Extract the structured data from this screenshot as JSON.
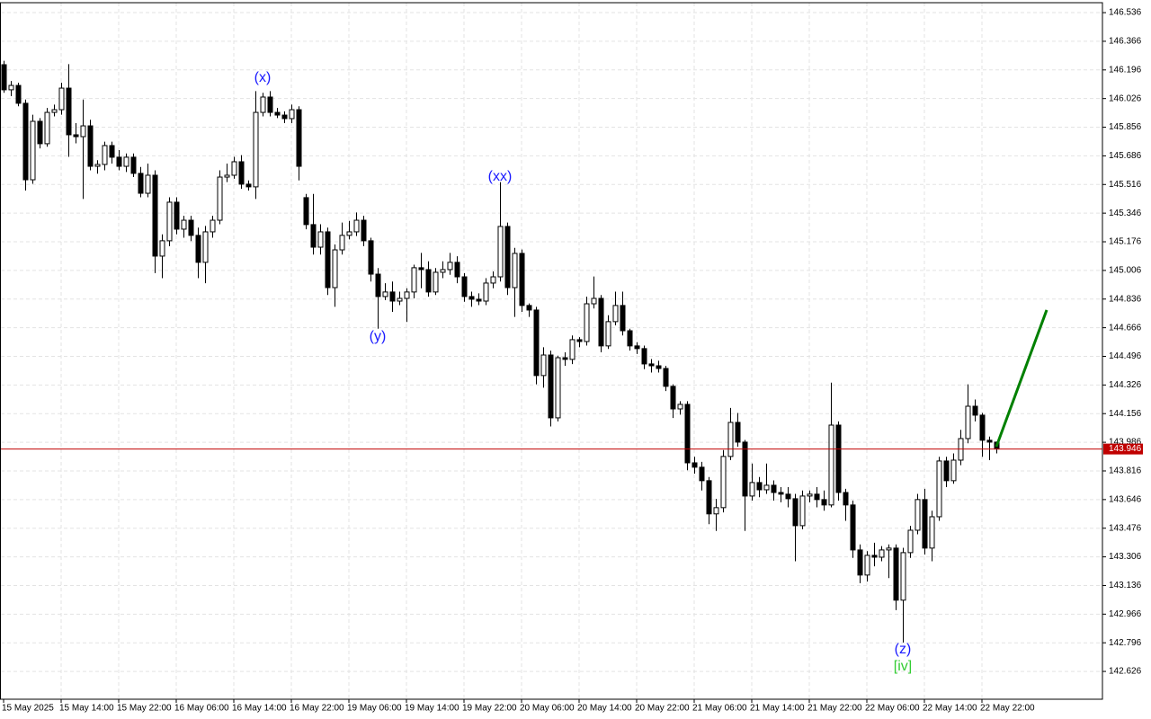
{
  "chart_data": {
    "type": "candlestick",
    "categories": [
      "15 May 2025",
      null,
      null,
      null,
      null,
      null,
      null,
      null,
      "15 May 14:00",
      null,
      null,
      null,
      null,
      null,
      null,
      null,
      "15 May 22:00",
      null,
      null,
      null,
      null,
      null,
      null,
      null,
      "16 May 06:00",
      null,
      null,
      null,
      null,
      null,
      null,
      null,
      "16 May 14:00",
      null,
      null,
      null,
      null,
      null,
      null,
      null,
      "16 May 22:00",
      null,
      null,
      null,
      null,
      null,
      null,
      null,
      "19 May 06:00",
      null,
      null,
      null,
      null,
      null,
      null,
      null,
      "19 May 14:00",
      null,
      null,
      null,
      null,
      null,
      null,
      null,
      "19 May 22:00",
      null,
      null,
      null,
      null,
      null,
      null,
      null,
      "20 May 06:00",
      null,
      null,
      null,
      null,
      null,
      null,
      null,
      "20 May 14:00",
      null,
      null,
      null,
      null,
      null,
      null,
      null,
      "20 May 22:00",
      null,
      null,
      null,
      null,
      null,
      null,
      null,
      "21 May 06:00",
      null,
      null,
      null,
      null,
      null,
      null,
      null,
      "21 May 14:00",
      null,
      null,
      null,
      null,
      null,
      null,
      null,
      "21 May 22:00",
      null,
      null,
      null,
      null,
      null,
      null,
      null,
      "22 May 06:00",
      null,
      null,
      null,
      null,
      null,
      null,
      null,
      "22 May 14:00",
      null,
      null,
      null,
      null,
      null,
      null,
      null,
      "22 May 22:00",
      null,
      null
    ],
    "open": [
      146.227,
      146.078,
      146.104,
      145.998,
      145.544,
      145.891,
      145.758,
      145.944,
      145.96,
      146.088,
      145.811,
      145.8,
      145.864,
      145.624,
      145.635,
      145.747,
      145.678,
      145.624,
      145.678,
      145.582,
      145.464,
      145.571,
      145.091,
      145.182,
      145.411,
      145.251,
      145.304,
      145.214,
      145.054,
      145.235,
      145.304,
      145.56,
      145.571,
      145.651,
      145.518,
      145.502,
      145.944,
      146.035,
      145.944,
      145.928,
      145.907,
      145.96,
      145.438,
      145.278,
      145.144,
      145.235,
      144.904,
      145.128,
      145.214,
      145.235,
      145.304,
      145.182,
      144.984,
      144.851,
      144.878,
      144.824,
      144.84,
      144.878,
      145.022,
      145.011,
      144.878,
      144.995,
      145.011,
      145.054,
      144.968,
      144.851,
      144.835,
      144.824,
      144.931,
      144.968,
      145.267,
      144.904,
      145.107,
      144.798,
      144.771,
      144.382,
      144.504,
      144.131,
      144.488,
      144.478,
      144.595,
      144.584,
      144.808,
      144.84,
      144.558,
      144.702,
      144.798,
      144.648,
      144.558,
      144.542,
      144.451,
      144.44,
      144.424,
      144.318,
      144.184,
      144.211,
      143.864,
      143.838,
      143.758,
      143.561,
      143.598,
      143.902,
      144.104,
      143.987,
      143.667,
      143.747,
      143.704,
      143.731,
      143.688,
      143.678,
      143.651,
      143.491,
      143.667,
      143.678,
      143.646,
      143.614,
      144.088,
      143.688,
      143.614,
      143.347,
      143.198,
      143.315,
      143.304,
      143.347,
      143.358,
      143.049,
      143.331,
      143.464,
      143.646,
      143.358,
      143.544,
      143.875,
      143.758,
      143.88,
      144.008,
      144.2,
      144.147,
      143.998,
      143.987
    ],
    "high": [
      146.25,
      146.13,
      146.12,
      146.02,
      145.93,
      145.91,
      145.97,
      145.99,
      146.12,
      146.23,
      145.88,
      146.02,
      145.9,
      145.66,
      145.77,
      145.77,
      145.72,
      145.7,
      145.7,
      145.62,
      145.64,
      145.6,
      145.22,
      145.44,
      145.44,
      145.33,
      145.33,
      145.26,
      145.27,
      145.33,
      145.6,
      145.64,
      145.68,
      145.69,
      145.54,
      146.07,
      146.06,
      146.07,
      145.97,
      145.95,
      145.99,
      145.98,
      145.46,
      145.46,
      145.28,
      145.26,
      145.16,
      145.29,
      145.3,
      145.35,
      145.33,
      145.2,
      145.02,
      144.93,
      144.94,
      144.88,
      144.9,
      145.04,
      145.11,
      145.06,
      145.02,
      145.06,
      145.11,
      145.09,
      144.99,
      144.88,
      144.87,
      144.96,
      145.0,
      145.53,
      145.29,
      145.14,
      145.13,
      144.81,
      144.79,
      144.55,
      144.53,
      144.5,
      144.52,
      144.62,
      144.61,
      144.85,
      144.97,
      144.86,
      144.74,
      144.88,
      144.88,
      144.66,
      144.58,
      144.56,
      144.48,
      144.47,
      144.44,
      144.33,
      144.23,
      144.23,
      143.9,
      143.87,
      143.78,
      143.65,
      143.94,
      144.19,
      144.16,
      144.0,
      143.86,
      143.78,
      143.86,
      143.76,
      143.72,
      143.72,
      143.68,
      143.7,
      143.7,
      143.72,
      143.7,
      144.34,
      144.11,
      143.71,
      143.64,
      143.38,
      143.34,
      143.39,
      143.37,
      143.38,
      143.38,
      143.36,
      143.49,
      143.68,
      143.71,
      143.58,
      143.9,
      143.9,
      143.92,
      144.06,
      144.33,
      144.24,
      144.16,
      144.02,
      143.99
    ],
    "low": [
      146.06,
      146.04,
      145.98,
      145.48,
      145.52,
      145.73,
      145.74,
      145.92,
      145.93,
      145.68,
      145.76,
      145.43,
      145.6,
      145.58,
      145.6,
      145.64,
      145.6,
      145.59,
      145.56,
      145.44,
      145.44,
      144.99,
      144.96,
      145.15,
      145.22,
      145.2,
      145.18,
      144.96,
      144.93,
      145.2,
      145.28,
      145.53,
      145.55,
      145.49,
      145.48,
      145.43,
      145.92,
      145.92,
      145.91,
      145.88,
      145.88,
      145.54,
      145.25,
      145.1,
      145.1,
      144.86,
      144.79,
      145.1,
      145.19,
      145.21,
      145.15,
      144.94,
      144.66,
      144.83,
      144.76,
      144.8,
      144.7,
      144.84,
      144.9,
      144.85,
      144.86,
      144.96,
      144.98,
      144.93,
      144.82,
      144.79,
      144.8,
      144.8,
      144.9,
      144.94,
      144.86,
      144.73,
      144.76,
      144.73,
      144.33,
      144.31,
      144.08,
      144.11,
      144.44,
      144.45,
      144.55,
      144.56,
      144.78,
      144.52,
      144.54,
      144.68,
      144.62,
      144.53,
      144.51,
      144.42,
      144.4,
      144.4,
      144.29,
      144.13,
      144.15,
      143.82,
      143.8,
      143.7,
      143.5,
      143.46,
      143.57,
      143.88,
      143.96,
      143.46,
      143.64,
      143.66,
      143.68,
      143.64,
      143.63,
      143.6,
      143.28,
      143.47,
      143.63,
      143.6,
      143.58,
      143.6,
      143.64,
      143.52,
      143.3,
      143.15,
      143.16,
      143.25,
      143.28,
      143.18,
      142.99,
      142.798,
      143.3,
      143.44,
      143.32,
      143.28,
      143.52,
      143.72,
      143.74,
      143.85,
      143.98,
      144.11,
      143.9,
      143.88,
      143.92
    ],
    "close": [
      146.078,
      146.104,
      145.998,
      145.544,
      145.891,
      145.758,
      145.944,
      145.96,
      146.088,
      145.811,
      145.8,
      145.864,
      145.624,
      145.635,
      145.747,
      145.678,
      145.624,
      145.678,
      145.582,
      145.464,
      145.571,
      145.091,
      145.182,
      145.411,
      145.251,
      145.304,
      145.214,
      145.054,
      145.235,
      145.304,
      145.56,
      145.571,
      145.651,
      145.518,
      145.502,
      145.944,
      146.035,
      145.944,
      145.928,
      145.907,
      145.96,
      145.624,
      145.278,
      145.144,
      145.235,
      144.904,
      145.128,
      145.214,
      145.235,
      145.304,
      145.182,
      144.984,
      144.851,
      144.878,
      144.824,
      144.84,
      144.878,
      145.022,
      145.011,
      144.878,
      144.995,
      145.011,
      145.054,
      144.968,
      144.851,
      144.835,
      144.824,
      144.931,
      144.968,
      145.267,
      144.904,
      145.107,
      144.798,
      144.771,
      144.382,
      144.504,
      144.131,
      144.488,
      144.478,
      144.595,
      144.584,
      144.808,
      144.84,
      144.558,
      144.702,
      144.798,
      144.648,
      144.558,
      144.542,
      144.451,
      144.44,
      144.424,
      144.318,
      144.184,
      144.211,
      143.864,
      143.838,
      143.758,
      143.561,
      143.598,
      143.902,
      144.104,
      143.987,
      143.667,
      143.747,
      143.704,
      143.731,
      143.688,
      143.678,
      143.651,
      143.491,
      143.667,
      143.678,
      143.646,
      143.614,
      144.088,
      143.688,
      143.614,
      143.347,
      143.198,
      143.315,
      143.304,
      143.347,
      143.358,
      143.049,
      143.331,
      143.464,
      143.646,
      143.358,
      143.544,
      143.875,
      143.758,
      143.88,
      144.008,
      144.2,
      144.147,
      143.998,
      143.987,
      143.946
    ],
    "up_color": "#ffffff",
    "down_color": "#000000",
    "ylim": [
      142.461,
      146.595
    ],
    "yticks": [
      146.536,
      146.366,
      146.196,
      146.026,
      145.856,
      145.686,
      145.516,
      145.346,
      145.176,
      145.006,
      144.836,
      144.666,
      144.496,
      144.326,
      144.156,
      143.986,
      143.816,
      143.646,
      143.476,
      143.306,
      143.136,
      142.966,
      142.796,
      142.626
    ],
    "grid": true,
    "current_price": {
      "value": 143.946,
      "color": "#c00000"
    },
    "annotations": [
      {
        "text": "(x)",
        "index": 36,
        "price": 146.147,
        "color": "#1a1aff"
      },
      {
        "text": "(xx)",
        "index": 69,
        "price": 145.56,
        "color": "#1a1aff"
      },
      {
        "text": "(y)",
        "index": 52,
        "price": 144.611,
        "color": "#1a1aff"
      },
      {
        "text": "(z)",
        "index": 125,
        "price": 142.755,
        "color": "#1a1aff"
      },
      {
        "text": "[iv]",
        "index": 125,
        "price": 142.654,
        "color": "#33cc33"
      }
    ],
    "forecast_line": {
      "color": "#008000",
      "from": {
        "index": 138,
        "price": 143.96
      },
      "to": {
        "index": 145,
        "price": 144.771
      }
    }
  }
}
